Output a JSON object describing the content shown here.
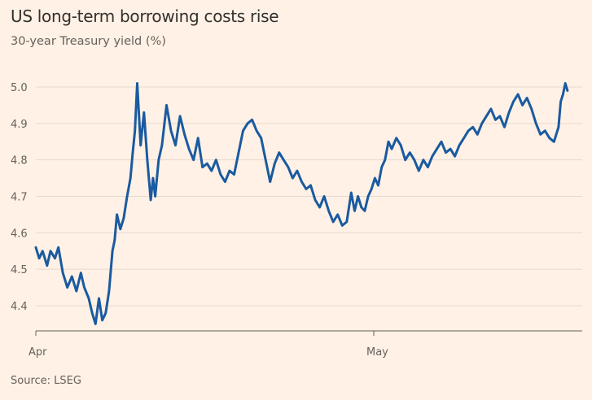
{
  "title": "US long-term borrowing costs rise",
  "subtitle": "30-year Treasury yield (%)",
  "source": "Source: LSEG",
  "colors": {
    "background": "#fff1e5",
    "line": "#1a5aa0",
    "grid": "#e6d9ce",
    "axis": "#66605c"
  },
  "chart_data": {
    "type": "line",
    "title": "US long-term borrowing costs rise",
    "ylabel": "30-year Treasury yield (%)",
    "xlabel": "",
    "ylim": [
      4.3,
      5.05
    ],
    "yticks": [
      4.4,
      4.5,
      4.6,
      4.7,
      4.8,
      4.9,
      5.0
    ],
    "ytick_labels": [
      "4.4",
      "4.5",
      "4.6",
      "4.7",
      "4.8",
      "4.9",
      "5.0"
    ],
    "xticks": [
      {
        "label": "Apr",
        "day": 1
      },
      {
        "label": "May",
        "day": 31
      }
    ],
    "grid": true,
    "series": [
      {
        "x": [
          1.0,
          1.3,
          1.6,
          2.0,
          2.3,
          2.7,
          3.0,
          3.4,
          3.8,
          4.2,
          4.6,
          5.0,
          5.3,
          5.7,
          6.0,
          6.3,
          6.6,
          6.9,
          7.2,
          7.5,
          7.8,
          8.0,
          8.2,
          8.5,
          8.8,
          9.1,
          9.4,
          9.6,
          9.8,
          10.0,
          10.3,
          10.6,
          10.9,
          11.2,
          11.4,
          11.6,
          11.9,
          12.2,
          12.6,
          13.0,
          13.4,
          13.8,
          14.2,
          14.6,
          15.0,
          15.4,
          15.8,
          16.2,
          16.6,
          17.0,
          17.4,
          17.8,
          18.2,
          18.6,
          19.0,
          19.4,
          19.8,
          20.2,
          20.6,
          21.0,
          21.4,
          21.8,
          22.2,
          22.6,
          23.0,
          23.4,
          23.8,
          24.2,
          24.6,
          25.0,
          25.4,
          25.8,
          26.2,
          26.6,
          27.0,
          27.4,
          27.8,
          28.2,
          28.6,
          29.0,
          29.3,
          29.6,
          29.9,
          30.2,
          30.5,
          30.8,
          31.1,
          31.4,
          31.7,
          32.0,
          32.3,
          32.6,
          33.0,
          33.4,
          33.8,
          34.2,
          34.6,
          35.0,
          35.4,
          35.8,
          36.2,
          36.6,
          37.0,
          37.4,
          37.8,
          38.2,
          38.6,
          39.0,
          39.4,
          39.8,
          40.2,
          40.6,
          41.0,
          41.4,
          41.8,
          42.2,
          42.6,
          43.0,
          43.4,
          43.8,
          44.2,
          44.6,
          45.0,
          45.4,
          45.8,
          46.2,
          46.6,
          47.0,
          47.2,
          47.4,
          47.6,
          47.8,
          48.0,
          48.2
        ],
        "y": [
          4.56,
          4.53,
          4.55,
          4.51,
          4.55,
          4.53,
          4.56,
          4.49,
          4.45,
          4.48,
          4.44,
          4.49,
          4.45,
          4.42,
          4.38,
          4.35,
          4.42,
          4.36,
          4.38,
          4.44,
          4.55,
          4.58,
          4.65,
          4.61,
          4.64,
          4.7,
          4.75,
          4.82,
          4.88,
          5.01,
          4.84,
          4.93,
          4.8,
          4.69,
          4.75,
          4.7,
          4.8,
          4.84,
          4.95,
          4.88,
          4.84,
          4.92,
          4.87,
          4.83,
          4.8,
          4.86,
          4.78,
          4.79,
          4.77,
          4.8,
          4.76,
          4.74,
          4.77,
          4.76,
          4.82,
          4.88,
          4.9,
          4.91,
          4.88,
          4.86,
          4.8,
          4.74,
          4.79,
          4.82,
          4.8,
          4.78,
          4.75,
          4.77,
          4.74,
          4.72,
          4.73,
          4.69,
          4.67,
          4.7,
          4.66,
          4.63,
          4.65,
          4.62,
          4.63,
          4.71,
          4.66,
          4.7,
          4.67,
          4.66,
          4.7,
          4.72,
          4.75,
          4.73,
          4.78,
          4.8,
          4.85,
          4.83,
          4.86,
          4.84,
          4.8,
          4.82,
          4.8,
          4.77,
          4.8,
          4.78,
          4.81,
          4.83,
          4.85,
          4.82,
          4.83,
          4.81,
          4.84,
          4.86,
          4.88,
          4.89,
          4.87,
          4.9,
          4.92,
          4.94,
          4.91,
          4.92,
          4.89,
          4.93,
          4.96,
          4.98,
          4.95,
          4.97,
          4.94,
          4.9,
          4.87,
          4.88,
          4.86,
          4.85,
          4.87,
          4.89,
          4.96,
          4.98,
          5.01,
          4.99
        ]
      }
    ]
  }
}
